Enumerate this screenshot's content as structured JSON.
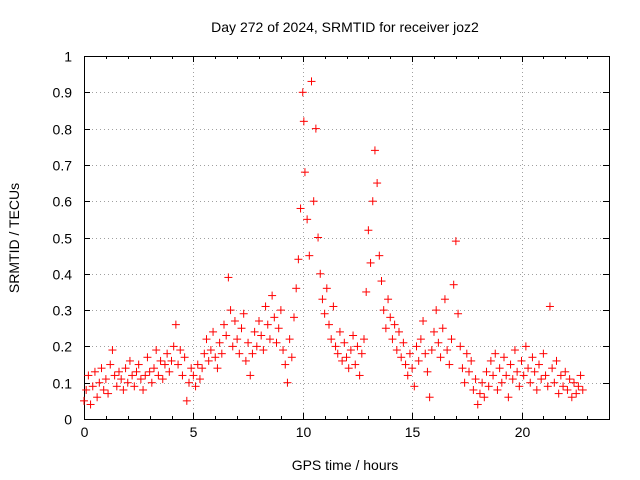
{
  "chart_data": {
    "type": "scatter",
    "title": "Day 272 of 2024, SRMTID for receiver joz2",
    "xlabel": "GPS time / hours",
    "ylabel": "SRMTID / TECUs",
    "xlim": [
      0,
      24
    ],
    "ylim": [
      0,
      1
    ],
    "xticks": [
      0,
      5,
      10,
      15,
      20
    ],
    "yticks": [
      0,
      0.1,
      0.2,
      0.3,
      0.4,
      0.5,
      0.6,
      0.7,
      0.8,
      0.9,
      1
    ],
    "grid": true,
    "marker": "+",
    "marker_color": "#ff0000",
    "series": [
      {
        "name": "SRMTID",
        "points": [
          [
            0.0,
            0.05
          ],
          [
            0.1,
            0.08
          ],
          [
            0.2,
            0.12
          ],
          [
            0.3,
            0.04
          ],
          [
            0.4,
            0.09
          ],
          [
            0.5,
            0.13
          ],
          [
            0.6,
            0.06
          ],
          [
            0.7,
            0.1
          ],
          [
            0.8,
            0.14
          ],
          [
            0.9,
            0.08
          ],
          [
            1.0,
            0.11
          ],
          [
            1.1,
            0.07
          ],
          [
            1.2,
            0.15
          ],
          [
            1.3,
            0.19
          ],
          [
            1.4,
            0.12
          ],
          [
            1.5,
            0.09
          ],
          [
            1.6,
            0.13
          ],
          [
            1.7,
            0.11
          ],
          [
            1.8,
            0.08
          ],
          [
            1.9,
            0.14
          ],
          [
            2.0,
            0.1
          ],
          [
            2.1,
            0.16
          ],
          [
            2.2,
            0.12
          ],
          [
            2.3,
            0.09
          ],
          [
            2.4,
            0.13
          ],
          [
            2.5,
            0.15
          ],
          [
            2.6,
            0.11
          ],
          [
            2.7,
            0.08
          ],
          [
            2.8,
            0.12
          ],
          [
            2.9,
            0.17
          ],
          [
            3.0,
            0.13
          ],
          [
            3.1,
            0.1
          ],
          [
            3.2,
            0.14
          ],
          [
            3.3,
            0.19
          ],
          [
            3.4,
            0.12
          ],
          [
            3.5,
            0.16
          ],
          [
            3.6,
            0.11
          ],
          [
            3.7,
            0.15
          ],
          [
            3.8,
            0.18
          ],
          [
            3.9,
            0.13
          ],
          [
            4.0,
            0.16
          ],
          [
            4.1,
            0.2
          ],
          [
            4.2,
            0.26
          ],
          [
            4.3,
            0.15
          ],
          [
            4.4,
            0.19
          ],
          [
            4.5,
            0.12
          ],
          [
            4.6,
            0.17
          ],
          [
            4.7,
            0.05
          ],
          [
            4.8,
            0.1
          ],
          [
            4.9,
            0.14
          ],
          [
            5.0,
            0.12
          ],
          [
            5.1,
            0.09
          ],
          [
            5.2,
            0.15
          ],
          [
            5.3,
            0.11
          ],
          [
            5.4,
            0.14
          ],
          [
            5.5,
            0.18
          ],
          [
            5.6,
            0.22
          ],
          [
            5.7,
            0.16
          ],
          [
            5.8,
            0.19
          ],
          [
            5.9,
            0.24
          ],
          [
            6.0,
            0.17
          ],
          [
            6.1,
            0.14
          ],
          [
            6.2,
            0.21
          ],
          [
            6.3,
            0.18
          ],
          [
            6.4,
            0.26
          ],
          [
            6.5,
            0.23
          ],
          [
            6.6,
            0.39
          ],
          [
            6.7,
            0.3
          ],
          [
            6.8,
            0.2
          ],
          [
            6.9,
            0.27
          ],
          [
            7.0,
            0.22
          ],
          [
            7.1,
            0.18
          ],
          [
            7.2,
            0.25
          ],
          [
            7.3,
            0.29
          ],
          [
            7.4,
            0.16
          ],
          [
            7.5,
            0.21
          ],
          [
            7.6,
            0.12
          ],
          [
            7.7,
            0.18
          ],
          [
            7.8,
            0.24
          ],
          [
            7.9,
            0.2
          ],
          [
            8.0,
            0.27
          ],
          [
            8.1,
            0.23
          ],
          [
            8.2,
            0.19
          ],
          [
            8.3,
            0.31
          ],
          [
            8.4,
            0.26
          ],
          [
            8.5,
            0.22
          ],
          [
            8.6,
            0.34
          ],
          [
            8.7,
            0.28
          ],
          [
            8.8,
            0.21
          ],
          [
            8.9,
            0.25
          ],
          [
            9.0,
            0.3
          ],
          [
            9.1,
            0.19
          ],
          [
            9.2,
            0.15
          ],
          [
            9.3,
            0.1
          ],
          [
            9.4,
            0.22
          ],
          [
            9.5,
            0.17
          ],
          [
            9.6,
            0.28
          ],
          [
            9.7,
            0.36
          ],
          [
            9.8,
            0.44
          ],
          [
            9.9,
            0.58
          ],
          [
            10.0,
            0.9
          ],
          [
            10.05,
            0.82
          ],
          [
            10.1,
            0.68
          ],
          [
            10.2,
            0.55
          ],
          [
            10.3,
            0.45
          ],
          [
            10.4,
            0.93
          ],
          [
            10.5,
            0.6
          ],
          [
            10.6,
            0.8
          ],
          [
            10.7,
            0.5
          ],
          [
            10.8,
            0.4
          ],
          [
            10.9,
            0.33
          ],
          [
            11.0,
            0.29
          ],
          [
            11.1,
            0.36
          ],
          [
            11.2,
            0.26
          ],
          [
            11.3,
            0.22
          ],
          [
            11.4,
            0.31
          ],
          [
            11.5,
            0.2
          ],
          [
            11.6,
            0.18
          ],
          [
            11.7,
            0.24
          ],
          [
            11.8,
            0.16
          ],
          [
            11.9,
            0.21
          ],
          [
            12.0,
            0.17
          ],
          [
            12.1,
            0.14
          ],
          [
            12.2,
            0.19
          ],
          [
            12.3,
            0.23
          ],
          [
            12.4,
            0.15
          ],
          [
            12.5,
            0.2
          ],
          [
            12.6,
            0.12
          ],
          [
            12.7,
            0.18
          ],
          [
            12.8,
            0.22
          ],
          [
            12.9,
            0.35
          ],
          [
            13.0,
            0.52
          ],
          [
            13.1,
            0.43
          ],
          [
            13.2,
            0.6
          ],
          [
            13.3,
            0.74
          ],
          [
            13.4,
            0.65
          ],
          [
            13.5,
            0.45
          ],
          [
            13.6,
            0.38
          ],
          [
            13.7,
            0.3
          ],
          [
            13.8,
            0.25
          ],
          [
            13.9,
            0.33
          ],
          [
            14.0,
            0.28
          ],
          [
            14.1,
            0.22
          ],
          [
            14.2,
            0.26
          ],
          [
            14.3,
            0.19
          ],
          [
            14.4,
            0.24
          ],
          [
            14.5,
            0.17
          ],
          [
            14.6,
            0.21
          ],
          [
            14.7,
            0.15
          ],
          [
            14.8,
            0.12
          ],
          [
            14.9,
            0.18
          ],
          [
            15.0,
            0.14
          ],
          [
            15.1,
            0.09
          ],
          [
            15.2,
            0.2
          ],
          [
            15.3,
            0.16
          ],
          [
            15.4,
            0.22
          ],
          [
            15.5,
            0.27
          ],
          [
            15.6,
            0.18
          ],
          [
            15.7,
            0.13
          ],
          [
            15.8,
            0.06
          ],
          [
            15.9,
            0.19
          ],
          [
            16.0,
            0.24
          ],
          [
            16.1,
            0.3
          ],
          [
            16.2,
            0.21
          ],
          [
            16.3,
            0.17
          ],
          [
            16.4,
            0.25
          ],
          [
            16.5,
            0.33
          ],
          [
            16.6,
            0.19
          ],
          [
            16.7,
            0.15
          ],
          [
            16.8,
            0.22
          ],
          [
            16.9,
            0.37
          ],
          [
            17.0,
            0.49
          ],
          [
            17.1,
            0.29
          ],
          [
            17.2,
            0.2
          ],
          [
            17.3,
            0.14
          ],
          [
            17.4,
            0.1
          ],
          [
            17.5,
            0.18
          ],
          [
            17.6,
            0.13
          ],
          [
            17.7,
            0.16
          ],
          [
            17.8,
            0.08
          ],
          [
            17.9,
            0.11
          ],
          [
            18.0,
            0.04
          ],
          [
            18.1,
            0.07
          ],
          [
            18.2,
            0.1
          ],
          [
            18.3,
            0.06
          ],
          [
            18.4,
            0.13
          ],
          [
            18.5,
            0.09
          ],
          [
            18.6,
            0.16
          ],
          [
            18.7,
            0.12
          ],
          [
            18.8,
            0.18
          ],
          [
            18.9,
            0.08
          ],
          [
            19.0,
            0.14
          ],
          [
            19.1,
            0.1
          ],
          [
            19.2,
            0.17
          ],
          [
            19.3,
            0.12
          ],
          [
            19.4,
            0.06
          ],
          [
            19.5,
            0.15
          ],
          [
            19.6,
            0.11
          ],
          [
            19.7,
            0.19
          ],
          [
            19.8,
            0.13
          ],
          [
            19.9,
            0.09
          ],
          [
            20.0,
            0.16
          ],
          [
            20.1,
            0.12
          ],
          [
            20.2,
            0.2
          ],
          [
            20.3,
            0.14
          ],
          [
            20.4,
            0.1
          ],
          [
            20.5,
            0.17
          ],
          [
            20.6,
            0.13
          ],
          [
            20.7,
            0.08
          ],
          [
            20.8,
            0.15
          ],
          [
            20.9,
            0.11
          ],
          [
            21.0,
            0.18
          ],
          [
            21.1,
            0.12
          ],
          [
            21.2,
            0.09
          ],
          [
            21.3,
            0.31
          ],
          [
            21.4,
            0.14
          ],
          [
            21.5,
            0.1
          ],
          [
            21.6,
            0.16
          ],
          [
            21.7,
            0.07
          ],
          [
            21.8,
            0.12
          ],
          [
            21.9,
            0.09
          ],
          [
            22.0,
            0.13
          ],
          [
            22.1,
            0.08
          ],
          [
            22.2,
            0.11
          ],
          [
            22.3,
            0.06
          ],
          [
            22.4,
            0.1
          ],
          [
            22.5,
            0.07
          ],
          [
            22.6,
            0.09
          ],
          [
            22.7,
            0.12
          ],
          [
            22.8,
            0.08
          ]
        ]
      }
    ]
  }
}
